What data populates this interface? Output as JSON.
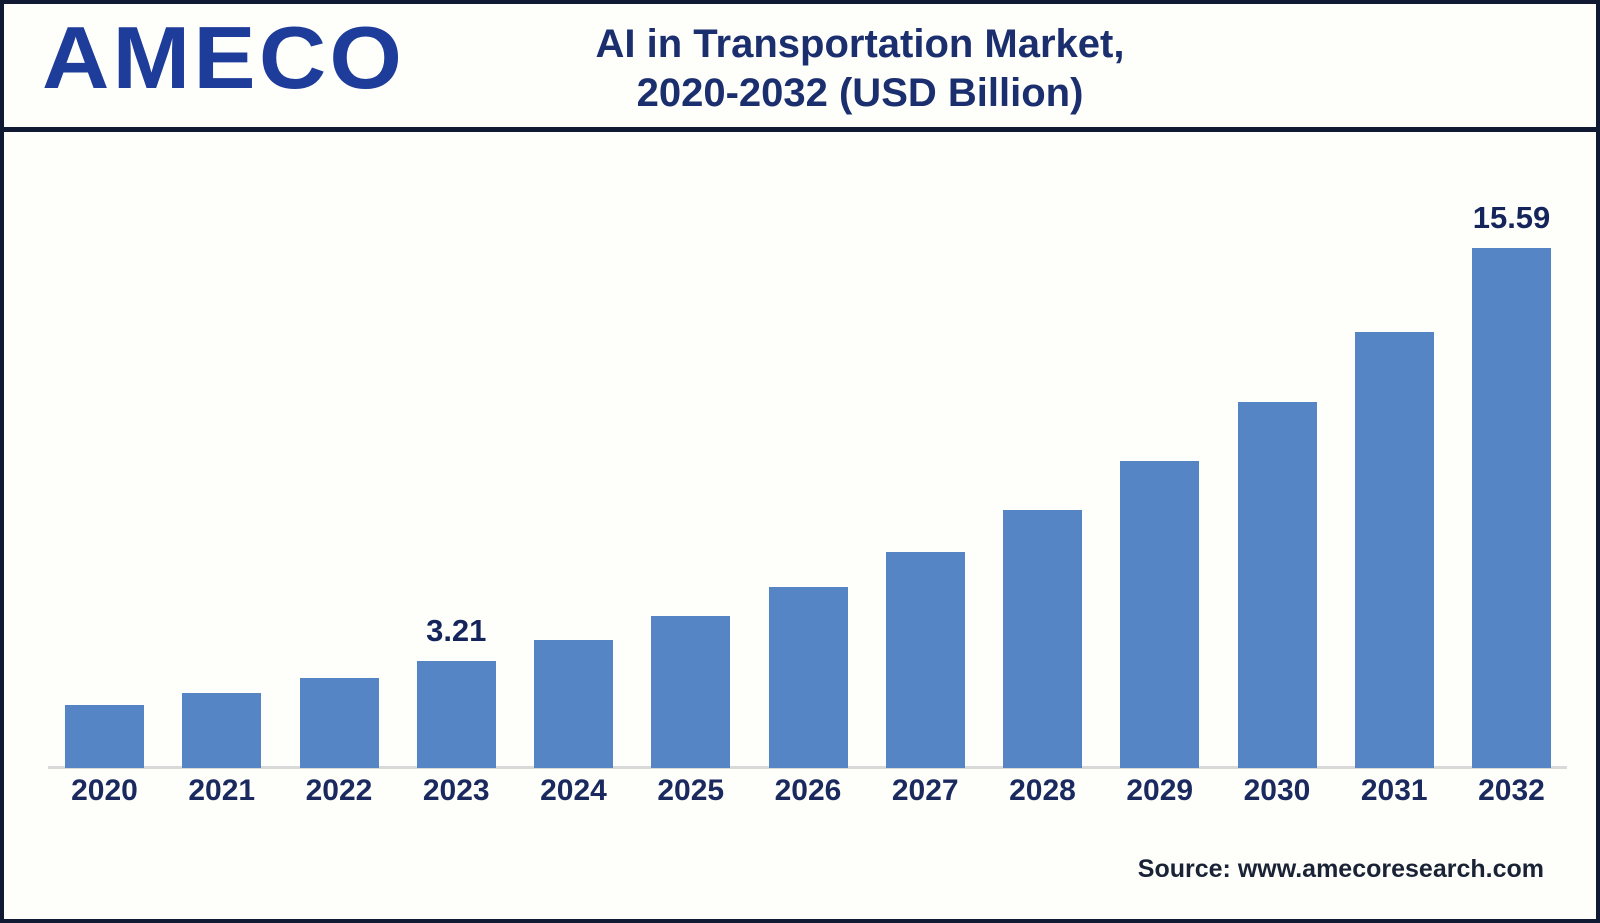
{
  "brand": {
    "logo_text": "AMECO",
    "logo_color": "#1E3C99"
  },
  "header": {
    "title_line1": "AI in Transportation Market,",
    "title_line2": "2020-2032 (USD Billion)",
    "title_color": "#1B2E6E"
  },
  "footer": {
    "source_text": "Source: www.amecoresearch.com",
    "source_color": "#1A2335"
  },
  "frame": {
    "border_color": "#101B33",
    "background_color": "#FEFEFB"
  },
  "chart_data": {
    "type": "bar",
    "title": "AI in Transportation Market, 2020-2032 (USD Billion)",
    "unit": "USD Billion",
    "xlabel": "",
    "ylabel": "",
    "categories": [
      "2020",
      "2021",
      "2022",
      "2023",
      "2024",
      "2025",
      "2026",
      "2027",
      "2028",
      "2029",
      "2030",
      "2031",
      "2032"
    ],
    "values": [
      1.9,
      2.26,
      2.69,
      3.21,
      3.83,
      4.56,
      5.44,
      6.48,
      7.73,
      9.21,
      10.98,
      13.08,
      15.59
    ],
    "data_labels": [
      "",
      "",
      "",
      "3.21",
      "",
      "",
      "",
      "",
      "",
      "",
      "",
      "",
      "15.59"
    ],
    "ylim": [
      0,
      16.5
    ],
    "grid": false,
    "legend": false,
    "y_axis_visible": false,
    "bar_color": "#5585C4",
    "tick_label_color": "#1A2A5E",
    "data_label_color": "#15255C",
    "axis_line_color": "#D9D9D9"
  }
}
